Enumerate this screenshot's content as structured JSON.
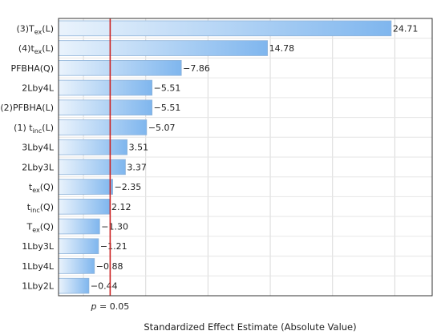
{
  "chart_data": {
    "type": "bar",
    "orientation": "horizontal",
    "categories": [
      {
        "main": "(3)T",
        "sub": "ex",
        "tail": "(L)"
      },
      {
        "main": "(4)t",
        "sub": "ex",
        "tail": "(L)"
      },
      {
        "main": "PFBHA(Q)",
        "sub": "",
        "tail": ""
      },
      {
        "main": "2Lby4L",
        "sub": "",
        "tail": ""
      },
      {
        "main": "(2)PFBHA(L)",
        "sub": "",
        "tail": ""
      },
      {
        "main": "(1) t",
        "sub": "inc",
        "tail": "(L)"
      },
      {
        "main": "3Lby4L",
        "sub": "",
        "tail": ""
      },
      {
        "main": "2Lby3L",
        "sub": "",
        "tail": ""
      },
      {
        "main": "t",
        "sub": "ex",
        "tail": "(Q)"
      },
      {
        "main": "t",
        "sub": "inc",
        "tail": "(Q)"
      },
      {
        "main": "T",
        "sub": "ex",
        "tail": "(Q)"
      },
      {
        "main": "1Lby3L",
        "sub": "",
        "tail": ""
      },
      {
        "main": "1Lby4L",
        "sub": "",
        "tail": ""
      },
      {
        "main": "1Lby2L",
        "sub": "",
        "tail": ""
      }
    ],
    "values": [
      24.71,
      14.78,
      7.86,
      5.51,
      5.51,
      5.07,
      3.51,
      3.37,
      2.35,
      2.12,
      1.3,
      1.21,
      0.88,
      0.44
    ],
    "value_labels": [
      "24.71",
      "14.78",
      "−7.86",
      "−5.51",
      "−5.51",
      "−5.07",
      "3.51",
      "3.37",
      "−2.35",
      "2.12",
      "−1.30",
      "−1.21",
      "−0.88",
      "−0.44"
    ],
    "xlabel": "Standardized Effect Estimate (Absolute Value)",
    "xlim": [
      -2,
      28
    ],
    "x_grid": [
      0,
      5,
      10,
      15,
      20,
      25
    ],
    "reference_line": {
      "value": 2.145,
      "label_var": "p",
      "label_rest": " = 0.05",
      "color": "#cc2222"
    },
    "bar_color_start": "#eaf3fc",
    "bar_color_end": "#7fb6ee",
    "bar_border": "#8fb3d9",
    "grid": true
  }
}
